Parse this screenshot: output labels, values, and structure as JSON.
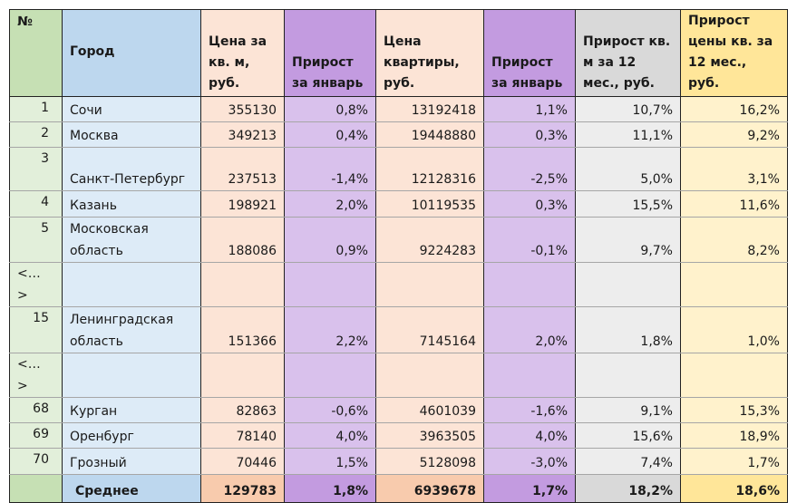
{
  "table": {
    "headers": [
      "№",
      "Город",
      "Цена за кв. м, руб.",
      "Прирост за январь",
      "Цена квартиры, руб.",
      "Прирост за январь",
      "Прирост кв. м за 12 мес., руб.",
      "Прирост цены кв. за 12 мес., руб."
    ],
    "rows": [
      {
        "no": "1",
        "city": "Сочи",
        "price_sqm": "355130",
        "growth_jan_sqm": "0,8%",
        "price_flat": "13192418",
        "growth_jan_flat": "1,1%",
        "growth_12m_sqm": "10,7%",
        "growth_12m_flat": "16,2%"
      },
      {
        "no": "2",
        "city": "Москва",
        "price_sqm": "349213",
        "growth_jan_sqm": "0,4%",
        "price_flat": "19448880",
        "growth_jan_flat": "0,3%",
        "growth_12m_sqm": "11,1%",
        "growth_12m_flat": "9,2%"
      },
      {
        "no": "3",
        "city": "Санкт-Петербург",
        "price_sqm": "237513",
        "growth_jan_sqm": "-1,4%",
        "price_flat": "12128316",
        "growth_jan_flat": "-2,5%",
        "growth_12m_sqm": "5,0%",
        "growth_12m_flat": "3,1%"
      },
      {
        "no": "4",
        "city": "Казань",
        "price_sqm": "198921",
        "growth_jan_sqm": "2,0%",
        "price_flat": "10119535",
        "growth_jan_flat": "0,3%",
        "growth_12m_sqm": "15,5%",
        "growth_12m_flat": "11,6%"
      },
      {
        "no": "5",
        "city": "Московская область",
        "price_sqm": "188086",
        "growth_jan_sqm": "0,9%",
        "price_flat": "9224283",
        "growth_jan_flat": "-0,1%",
        "growth_12m_sqm": "9,7%",
        "growth_12m_flat": "8,2%"
      },
      {
        "no": "<…>",
        "city": "",
        "price_sqm": "",
        "growth_jan_sqm": "",
        "price_flat": "",
        "growth_jan_flat": "",
        "growth_12m_sqm": "",
        "growth_12m_flat": ""
      },
      {
        "no": "15",
        "city": "Ленинградская область",
        "price_sqm": "151366",
        "growth_jan_sqm": "2,2%",
        "price_flat": "7145164",
        "growth_jan_flat": "2,0%",
        "growth_12m_sqm": "1,8%",
        "growth_12m_flat": "1,0%"
      },
      {
        "no": "<…>",
        "city": "",
        "price_sqm": "",
        "growth_jan_sqm": "",
        "price_flat": "",
        "growth_jan_flat": "",
        "growth_12m_sqm": "",
        "growth_12m_flat": ""
      },
      {
        "no": "68",
        "city": "Курган",
        "price_sqm": "82863",
        "growth_jan_sqm": "-0,6%",
        "price_flat": "4601039",
        "growth_jan_flat": "-1,6%",
        "growth_12m_sqm": "9,1%",
        "growth_12m_flat": "15,3%"
      },
      {
        "no": "69",
        "city": "Оренбург",
        "price_sqm": "78140",
        "growth_jan_sqm": "4,0%",
        "price_flat": "3963505",
        "growth_jan_flat": "4,0%",
        "growth_12m_sqm": "15,6%",
        "growth_12m_flat": "18,9%"
      },
      {
        "no": "70",
        "city": "Грозный",
        "price_sqm": "70446",
        "growth_jan_sqm": "1,5%",
        "price_flat": "5128098",
        "growth_jan_flat": "-3,0%",
        "growth_12m_sqm": "7,4%",
        "growth_12m_flat": "1,7%"
      }
    ],
    "footer": {
      "no": "",
      "city": "Среднее",
      "price_sqm": "129783",
      "growth_jan_sqm": "1,8%",
      "price_flat": "6939678",
      "growth_jan_flat": "1,7%",
      "growth_12m_sqm": "18,2%",
      "growth_12m_flat": "18,6%"
    }
  },
  "colors": {
    "no_header": "#c6e0b4",
    "no_cell": "#e2efda",
    "city_header": "#bdd7ee",
    "city_cell": "#ddebf7",
    "price_cell": "#fce4d6",
    "price_footer": "#f8cbad",
    "growth_header": "#c39be0",
    "growth_cell": "#d9c1ec",
    "y12_header": "#d9d9d9",
    "y12_cell": "#ededed",
    "yflat_header": "#ffe699",
    "yflat_cell": "#fff2cc"
  }
}
